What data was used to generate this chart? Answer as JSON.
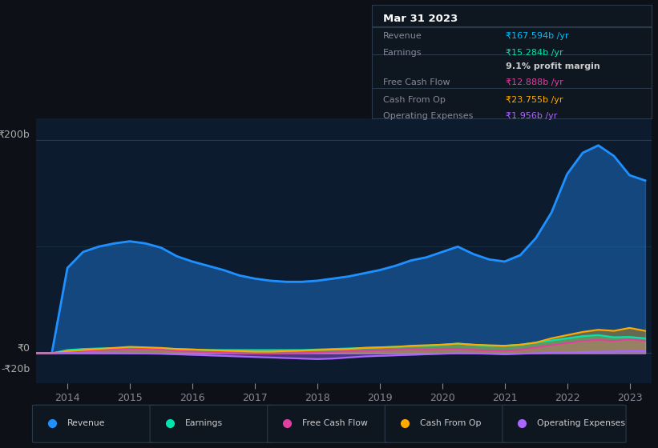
{
  "background_color": "#0d1117",
  "chart_bg_color": "#0d1b2e",
  "grid_color": "#1e2d3d",
  "title_box": {
    "date": "Mar 31 2023",
    "rows": [
      {
        "label": "Revenue",
        "value": "₹167.594b /yr",
        "value_color": "#00bfff",
        "label_color": "#888899"
      },
      {
        "label": "Earnings",
        "value": "₹15.284b /yr",
        "value_color": "#00e5b0",
        "label_color": "#888899"
      },
      {
        "label": "",
        "value": "9.1% profit margin",
        "value_color": "#cccccc",
        "label_color": "#888899"
      },
      {
        "label": "Free Cash Flow",
        "value": "₹12.888b /yr",
        "value_color": "#e040a0",
        "label_color": "#888899"
      },
      {
        "label": "Cash From Op",
        "value": "₹23.755b /yr",
        "value_color": "#ffaa00",
        "label_color": "#888899"
      },
      {
        "label": "Operating Expenses",
        "value": "₹1.956b /yr",
        "value_color": "#aa66ff",
        "label_color": "#888899"
      }
    ]
  },
  "years": [
    2013.5,
    2013.75,
    2014.0,
    2014.25,
    2014.5,
    2014.75,
    2015.0,
    2015.25,
    2015.5,
    2015.75,
    2016.0,
    2016.25,
    2016.5,
    2016.75,
    2017.0,
    2017.25,
    2017.5,
    2017.75,
    2018.0,
    2018.25,
    2018.5,
    2018.75,
    2019.0,
    2019.25,
    2019.5,
    2019.75,
    2020.0,
    2020.25,
    2020.5,
    2020.75,
    2021.0,
    2021.25,
    2021.5,
    2021.75,
    2022.0,
    2022.25,
    2022.5,
    2022.75,
    2023.0,
    2023.25
  ],
  "revenue": [
    0,
    0,
    80,
    95,
    100,
    103,
    105,
    103,
    99,
    91,
    86,
    82,
    78,
    73,
    70,
    68,
    67,
    67,
    68,
    70,
    72,
    75,
    78,
    82,
    87,
    90,
    95,
    100,
    93,
    88,
    86,
    92,
    108,
    132,
    168,
    188,
    195,
    185,
    167,
    162
  ],
  "earnings": [
    0,
    0,
    3,
    4,
    4.5,
    4.8,
    5,
    5,
    4.5,
    4,
    3.5,
    3,
    3,
    3,
    3,
    3,
    3,
    3,
    3.5,
    4,
    4.5,
    5,
    5.5,
    6,
    6.5,
    7,
    8,
    9,
    8,
    7,
    7,
    8,
    10,
    12,
    14,
    16,
    17,
    15,
    15.28,
    14
  ],
  "free_cash_flow": [
    0,
    0,
    1.5,
    2,
    3,
    3.5,
    4,
    4,
    3.5,
    2,
    1.5,
    1,
    0.5,
    0,
    -0.2,
    -0.3,
    0,
    0.2,
    0.8,
    1.2,
    1.8,
    2.2,
    2.8,
    3.2,
    3.8,
    3.2,
    3.8,
    4.2,
    3.2,
    2.5,
    2.2,
    3.2,
    5.5,
    7.5,
    9.5,
    11.5,
    12.5,
    11.5,
    12.888,
    11.5
  ],
  "cash_from_op": [
    0,
    0,
    2,
    3,
    4,
    5,
    6,
    5.5,
    5,
    4,
    3.5,
    3,
    2.5,
    2,
    1.5,
    1.5,
    2,
    2.5,
    3,
    3.5,
    4,
    5,
    5.5,
    6,
    7,
    7.5,
    8,
    9,
    8,
    7.5,
    7,
    8,
    10,
    14,
    17,
    20,
    22,
    21,
    23.755,
    21
  ],
  "op_expenses": [
    0,
    0,
    0.3,
    0.2,
    0.1,
    0,
    -0.2,
    -0.3,
    -0.5,
    -1,
    -1.5,
    -2,
    -2.5,
    -3,
    -3.5,
    -4,
    -4.5,
    -5,
    -5.5,
    -5,
    -4,
    -3,
    -2.5,
    -2,
    -1.5,
    -1,
    -0.5,
    0,
    -0.2,
    -0.5,
    -1,
    -0.5,
    0,
    0.5,
    0.8,
    1.2,
    1.4,
    1.6,
    1.956,
    1.8
  ],
  "revenue_color": "#1e90ff",
  "earnings_color": "#00e5b0",
  "fcf_color": "#e040a0",
  "cashop_color": "#ffaa00",
  "opex_color": "#aa66ff",
  "ylim": [
    -28,
    220
  ],
  "xlim": [
    2013.5,
    2023.35
  ],
  "xticks": [
    2014,
    2015,
    2016,
    2017,
    2018,
    2019,
    2020,
    2021,
    2022,
    2023
  ],
  "ylabel_200": "₹200b",
  "ylabel_0": "₹0",
  "ylabel_neg20": "-₹20b",
  "legend_items": [
    {
      "label": "Revenue",
      "color": "#1e90ff"
    },
    {
      "label": "Earnings",
      "color": "#00e5b0"
    },
    {
      "label": "Free Cash Flow",
      "color": "#e040a0"
    },
    {
      "label": "Cash From Op",
      "color": "#ffaa00"
    },
    {
      "label": "Operating Expenses",
      "color": "#aa66ff"
    }
  ]
}
